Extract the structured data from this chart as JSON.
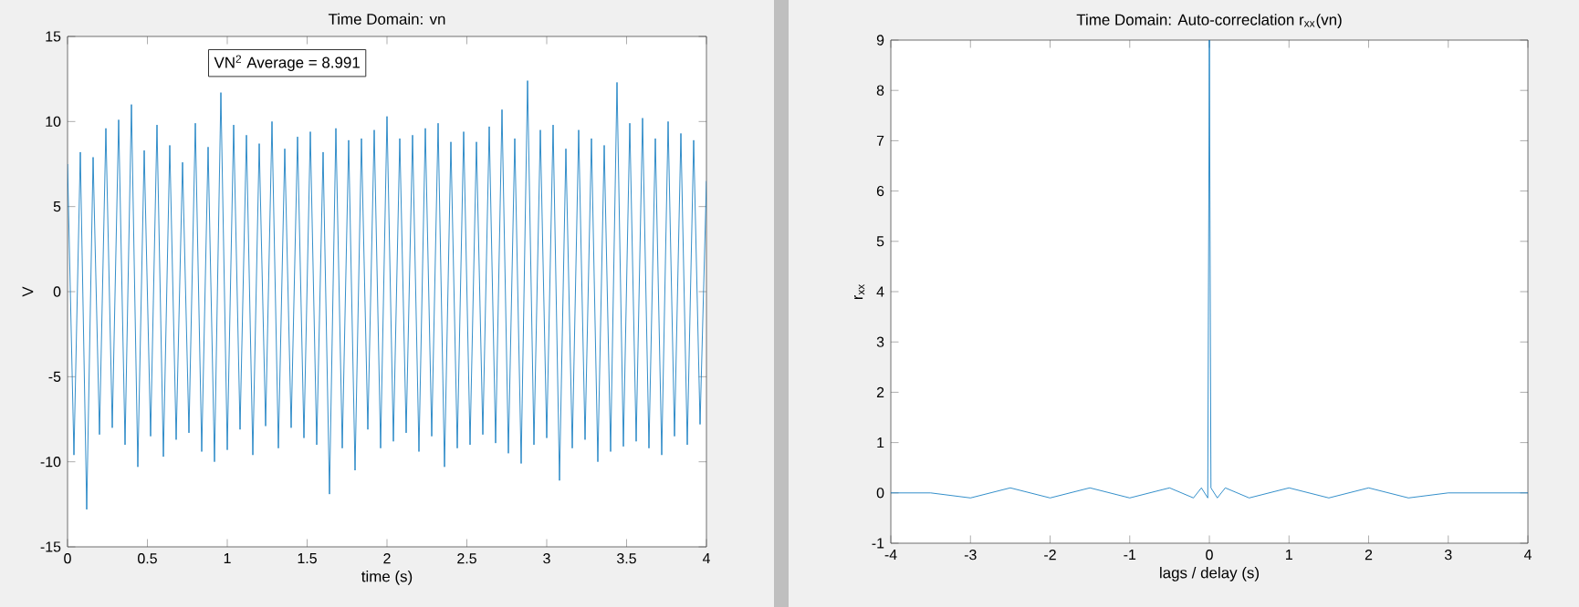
{
  "chart_data": [
    {
      "type": "line",
      "title": "Time Domain: vn",
      "xlabel": "time (s)",
      "ylabel": "V",
      "color": "#0072bd",
      "x": [
        0,
        0.04,
        0.08,
        0.12,
        0.16,
        0.2,
        0.24,
        0.28,
        0.32,
        0.36,
        0.4,
        0.44,
        0.48,
        0.52,
        0.56,
        0.6,
        0.64,
        0.68,
        0.72,
        0.76,
        0.8,
        0.84,
        0.88,
        0.92,
        0.96,
        1,
        1.04,
        1.08,
        1.12,
        1.16,
        1.2,
        1.24,
        1.28,
        1.32,
        1.36,
        1.4,
        1.44,
        1.48,
        1.52,
        1.56,
        1.6,
        1.64,
        1.68,
        1.72,
        1.76,
        1.8,
        1.84,
        1.88,
        1.92,
        1.96,
        2,
        2.04,
        2.08,
        2.12,
        2.16,
        2.2,
        2.24,
        2.28,
        2.32,
        2.36,
        2.4,
        2.44,
        2.48,
        2.52,
        2.56,
        2.6,
        2.64,
        2.68,
        2.72,
        2.76,
        2.8,
        2.84,
        2.88,
        2.92,
        2.96,
        3,
        3.04,
        3.08,
        3.12,
        3.16,
        3.2,
        3.24,
        3.28,
        3.32,
        3.36,
        3.4,
        3.44,
        3.48,
        3.52,
        3.56,
        3.6,
        3.64,
        3.68,
        3.72,
        3.76,
        3.8,
        3.84,
        3.88,
        3.92,
        3.96,
        4
      ],
      "values": [
        7.5,
        -9.6,
        8.2,
        -12.8,
        7.9,
        -8.4,
        9.6,
        -8.0,
        10.1,
        -9.0,
        11.0,
        -10.3,
        8.3,
        -8.5,
        9.8,
        -9.7,
        8.6,
        -8.7,
        7.6,
        -8.3,
        9.9,
        -9.4,
        8.5,
        -10.0,
        11.7,
        -9.3,
        9.8,
        -8.1,
        9.2,
        -9.6,
        8.7,
        -7.9,
        10.0,
        -9.2,
        8.4,
        -8.0,
        9.1,
        -8.6,
        9.4,
        -9.0,
        8.2,
        -11.9,
        9.6,
        -9.2,
        8.9,
        -10.5,
        9.0,
        -8.1,
        9.5,
        -9.2,
        10.3,
        -8.8,
        9.0,
        -8.3,
        9.2,
        -9.4,
        9.6,
        -8.5,
        9.9,
        -10.3,
        8.8,
        -9.2,
        9.4,
        -9.0,
        8.8,
        -8.4,
        9.7,
        -8.9,
        10.7,
        -9.5,
        9.0,
        -10.1,
        12.4,
        -9.0,
        9.5,
        -8.6,
        9.8,
        -11.1,
        8.4,
        -9.2,
        9.5,
        -8.7,
        9.0,
        -10.0,
        8.6,
        -9.4,
        12.3,
        -9.1,
        9.9,
        -8.8,
        10.2,
        -9.2,
        9.0,
        -9.6,
        10.0,
        -8.5,
        9.3,
        -9.0,
        8.9,
        -7.8,
        6.5
      ],
      "xlim": [
        0,
        4
      ],
      "ylim": [
        -15,
        15
      ],
      "xticks": [
        0,
        0.5,
        1,
        1.5,
        2,
        2.5,
        3,
        3.5,
        4
      ],
      "yticks": [
        -15,
        -10,
        -5,
        0,
        5,
        10,
        15
      ],
      "annotations": [
        "VN$^{2}$ Average = 8.991"
      ]
    },
    {
      "type": "line",
      "title": "Time Domain: Auto-correclation r$_{xx}$(vn)",
      "xlabel": "lags / delay (s)",
      "ylabel": "r$_{xx}$",
      "color": "#0072bd",
      "x": [
        -4,
        -3.5,
        -3,
        -2.5,
        -2,
        -1.5,
        -1,
        -0.5,
        -0.2,
        -0.1,
        -0.02,
        0,
        0.02,
        0.1,
        0.2,
        0.5,
        1,
        1.5,
        2,
        2.5,
        3,
        3.5,
        4
      ],
      "values": [
        0,
        0,
        -0.1,
        0.1,
        -0.1,
        0.1,
        -0.1,
        0.1,
        -0.1,
        0.1,
        -0.1,
        9,
        0.1,
        -0.1,
        0.1,
        -0.1,
        0.1,
        -0.1,
        0.1,
        -0.1,
        0,
        0,
        0
      ],
      "xlim": [
        -4,
        4
      ],
      "ylim": [
        -1,
        9
      ],
      "xticks": [
        -4,
        -3,
        -2,
        -1,
        0,
        1,
        2,
        3,
        4
      ],
      "yticks": [
        -1,
        0,
        1,
        2,
        3,
        4,
        5,
        6,
        7,
        8,
        9
      ]
    }
  ]
}
